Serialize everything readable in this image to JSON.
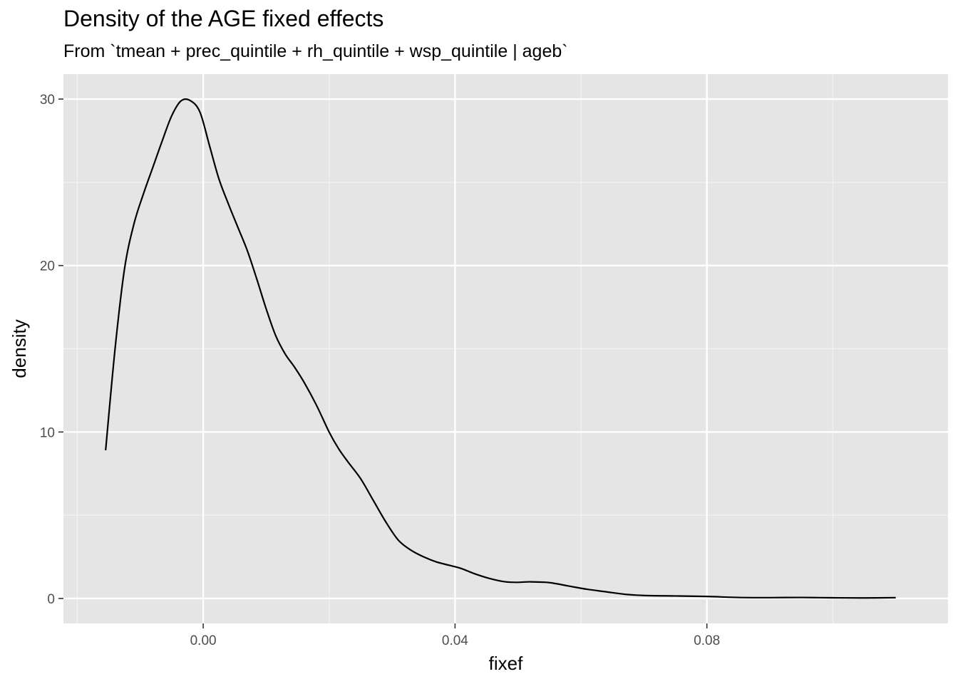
{
  "chart_data": {
    "type": "line",
    "title": "Density of the AGE fixed effects",
    "subtitle": "From `tmean + prec_quintile + rh_quintile + wsp_quintile | ageb`",
    "xlabel": "fixef",
    "ylabel": "density",
    "xlim": [
      -0.0222,
      0.1183
    ],
    "ylim": [
      -1.5,
      31.5
    ],
    "x_ticks": [
      0.0,
      0.04,
      0.08
    ],
    "x_tick_labels": [
      "0.00",
      "0.04",
      "0.08"
    ],
    "x_minor_ticks": [
      -0.02,
      0.02,
      0.06,
      0.1
    ],
    "y_ticks": [
      0,
      10,
      20,
      30
    ],
    "y_tick_labels": [
      "0",
      "10",
      "20",
      "30"
    ],
    "y_minor_ticks": [
      5,
      15,
      25
    ],
    "grid": true,
    "legend": "none",
    "series": [
      {
        "color": "#000000",
        "x": [
          -0.0155,
          -0.014,
          -0.0125,
          -0.011,
          -0.0095,
          -0.008,
          -0.0065,
          -0.005,
          -0.0035,
          -0.002,
          -0.0005,
          0.001,
          0.0025,
          0.004,
          0.0055,
          0.007,
          0.0085,
          0.01,
          0.0115,
          0.013,
          0.0145,
          0.016,
          0.018,
          0.02,
          0.0215,
          0.023,
          0.025,
          0.027,
          0.029,
          0.031,
          0.033,
          0.035,
          0.037,
          0.039,
          0.041,
          0.043,
          0.0455,
          0.048,
          0.05,
          0.052,
          0.055,
          0.058,
          0.061,
          0.064,
          0.067,
          0.07,
          0.075,
          0.08,
          0.085,
          0.09,
          0.095,
          0.1,
          0.105,
          0.11
        ],
        "y": [
          8.9,
          15.0,
          19.8,
          22.5,
          24.3,
          25.9,
          27.5,
          29.0,
          29.9,
          29.9,
          29.2,
          27.2,
          25.2,
          23.7,
          22.3,
          20.9,
          19.2,
          17.4,
          15.8,
          14.7,
          13.9,
          13.0,
          11.6,
          10.0,
          9.0,
          8.2,
          7.2,
          5.9,
          4.6,
          3.5,
          2.9,
          2.5,
          2.2,
          2.0,
          1.8,
          1.5,
          1.2,
          1.0,
          0.97,
          1.0,
          0.95,
          0.75,
          0.55,
          0.4,
          0.25,
          0.18,
          0.15,
          0.12,
          0.06,
          0.05,
          0.06,
          0.04,
          0.03,
          0.05
        ]
      }
    ]
  }
}
